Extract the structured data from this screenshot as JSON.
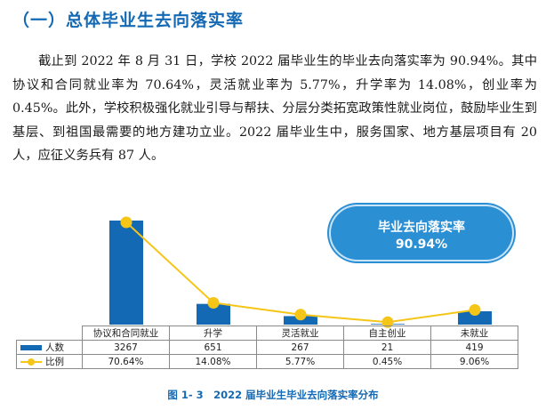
{
  "section_title": "（一）总体毕业生去向落实率",
  "paragraph": "截止到 2022 年 8 月 31 日，学校 2022 届毕业生的毕业去向落实率为 90.94%。其中协议和合同就业率为 70.64%，灵活就业率为 5.77%，升学率为 14.08%，创业率为 0.45%。此外，学校积极强化就业引导与帮扶、分层分类拓宽政策性就业岗位，鼓励毕业生到基层、到祖国最需要的地方建功立业。2022 届毕业生中，服务国家、地方基层项目有 20 人，应征义务兵有 87 人。",
  "bubble": {
    "label": "毕业去向落实率",
    "value": "90.94%"
  },
  "colors": {
    "bar": "#1469b4",
    "line": "#f5c518",
    "accent": "#1469b4",
    "bubble": "#2b8fd4"
  },
  "chart_data": {
    "type": "bar",
    "categories": [
      "协议和合同就业",
      "升学",
      "灵活就业",
      "自主创业",
      "未就业"
    ],
    "series": [
      {
        "name": "人数",
        "type": "bar",
        "values": [
          3267,
          651,
          267,
          21,
          419
        ]
      },
      {
        "name": "比例",
        "type": "line",
        "values": [
          70.64,
          14.08,
          5.77,
          0.45,
          9.06
        ]
      }
    ],
    "table": {
      "counts": [
        "3267",
        "651",
        "267",
        "21",
        "419"
      ],
      "ratios": [
        "70.64%",
        "14.08%",
        "5.77%",
        "0.45%",
        "9.06%"
      ]
    },
    "caption": "图 1- 3　2022 届毕业生毕业去向落实率分布"
  }
}
